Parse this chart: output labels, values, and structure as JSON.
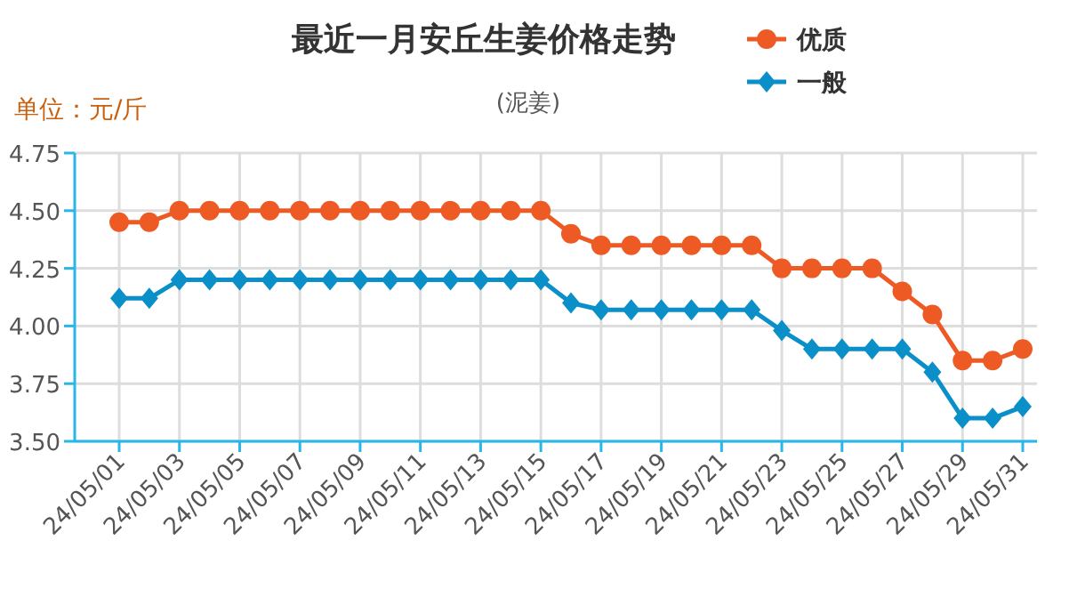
{
  "chart_data": {
    "type": "line",
    "title": "最近一月安丘生姜价格走势",
    "subtitle": "(泥姜)",
    "ylabel": "单位：元/斤",
    "categories": [
      "24/05/01",
      null,
      "24/05/03",
      null,
      "24/05/05",
      null,
      "24/05/07",
      null,
      "24/05/09",
      null,
      "24/05/11",
      null,
      "24/05/13",
      null,
      "24/05/15",
      null,
      "24/05/17",
      null,
      "24/05/19",
      null,
      "24/05/21",
      null,
      "24/05/23",
      null,
      "24/05/25",
      null,
      "24/05/27",
      null,
      "24/05/29",
      null,
      "24/05/31"
    ],
    "series": [
      {
        "name": "优质",
        "color": "#ee5a24",
        "marker": "circle",
        "values": [
          4.45,
          4.45,
          4.5,
          4.5,
          4.5,
          4.5,
          4.5,
          4.5,
          4.5,
          4.5,
          4.5,
          4.5,
          4.5,
          4.5,
          4.5,
          4.4,
          4.35,
          4.35,
          4.35,
          4.35,
          4.35,
          4.35,
          4.25,
          4.25,
          4.25,
          4.25,
          4.15,
          4.05,
          3.85,
          3.85,
          3.9
        ]
      },
      {
        "name": "一般",
        "color": "#0a8fc8",
        "marker": "diamond",
        "values": [
          4.12,
          4.12,
          4.2,
          4.2,
          4.2,
          4.2,
          4.2,
          4.2,
          4.2,
          4.2,
          4.2,
          4.2,
          4.2,
          4.2,
          4.2,
          4.1,
          4.07,
          4.07,
          4.07,
          4.07,
          4.07,
          4.07,
          3.98,
          3.9,
          3.9,
          3.9,
          3.9,
          3.8,
          3.6,
          3.6,
          3.65
        ]
      }
    ],
    "ylim": [
      3.5,
      4.75
    ],
    "yticks": [
      {
        "value": 3.5,
        "label": "3.50"
      },
      {
        "value": 3.75,
        "label": "3.75"
      },
      {
        "value": 4,
        "label": "4.00"
      },
      {
        "value": 4.25,
        "label": "4.25"
      },
      {
        "value": 4.5,
        "label": "4.50"
      },
      {
        "value": 4.75,
        "label": "4.75"
      }
    ],
    "grid": true,
    "legend": "top right",
    "line_style": "solid"
  }
}
